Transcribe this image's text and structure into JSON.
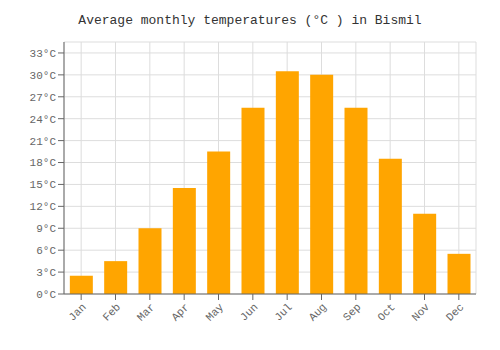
{
  "chart_data": {
    "type": "bar",
    "title": "Average monthly temperatures (°C ) in Bismil",
    "categories": [
      "Jan",
      "Feb",
      "Mar",
      "Apr",
      "May",
      "Jun",
      "Jul",
      "Aug",
      "Sep",
      "Oct",
      "Nov",
      "Dec"
    ],
    "values": [
      2.5,
      4.5,
      9.0,
      14.5,
      19.5,
      25.5,
      30.5,
      30.0,
      25.5,
      18.5,
      11.0,
      5.5
    ],
    "color": "#FFA500",
    "ylim": [
      0,
      34.5
    ],
    "yticks": [
      {
        "value": 0,
        "label": "0°C"
      },
      {
        "value": 3,
        "label": "3°C"
      },
      {
        "value": 6,
        "label": "6°C"
      },
      {
        "value": 9,
        "label": "9°C"
      },
      {
        "value": 12,
        "label": "12°C"
      },
      {
        "value": 15,
        "label": "15°C"
      },
      {
        "value": 18,
        "label": "18°C"
      },
      {
        "value": 21,
        "label": "21°C"
      },
      {
        "value": 24,
        "label": "24°C"
      },
      {
        "value": 27,
        "label": "27°C"
      },
      {
        "value": 30,
        "label": "30°C"
      },
      {
        "value": 33,
        "label": "33°C"
      }
    ],
    "grid": true
  }
}
